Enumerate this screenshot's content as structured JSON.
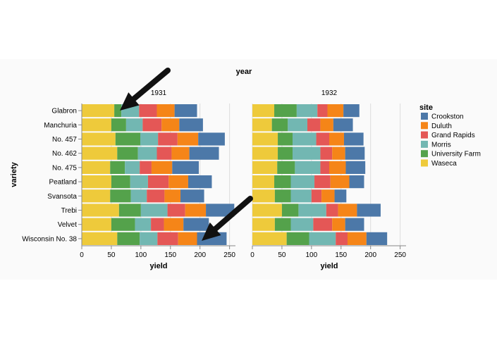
{
  "chart_data": {
    "type": "bar",
    "orientation": "horizontal",
    "stacked": true,
    "column_header": "year",
    "facets": [
      "1931",
      "1932"
    ],
    "xlabel": "yield",
    "ylabel": "variety",
    "xlim": [
      0,
      260
    ],
    "x_ticks": [
      0,
      50,
      100,
      150,
      200,
      250
    ],
    "grid": true,
    "legend": {
      "title": "site",
      "placement": "right"
    },
    "categories": [
      "Glabron",
      "Manchuria",
      "No. 457",
      "No. 462",
      "No. 475",
      "Peatland",
      "Svansota",
      "Trebi",
      "Velvet",
      "Wisconsin No. 38"
    ],
    "series": [
      {
        "name": "Waseca",
        "color": "#eeca3b",
        "values_1931": [
          55,
          50,
          57,
          60,
          48,
          50,
          48,
          63,
          50,
          60
        ],
        "values_1932": [
          37,
          33,
          43,
          43,
          42,
          37,
          38,
          50,
          38,
          58
        ]
      },
      {
        "name": "University Farm",
        "color": "#54a24b",
        "values_1931": [
          12,
          25,
          42,
          35,
          25,
          32,
          35,
          37,
          40,
          38
        ],
        "values_1932": [
          38,
          27,
          25,
          25,
          30,
          28,
          27,
          28,
          27,
          38
        ]
      },
      {
        "name": "Morris",
        "color": "#72b7b2",
        "values_1931": [
          30,
          28,
          30,
          32,
          25,
          30,
          27,
          45,
          27,
          30
        ],
        "values_1932": [
          35,
          33,
          40,
          47,
          43,
          40,
          35,
          47,
          38,
          45
        ]
      },
      {
        "name": "Grand Rapids",
        "color": "#e45756",
        "values_1931": [
          30,
          32,
          33,
          25,
          20,
          35,
          30,
          30,
          22,
          35
        ],
        "values_1932": [
          17,
          22,
          22,
          20,
          15,
          27,
          17,
          20,
          32,
          20
        ]
      },
      {
        "name": "Duluth",
        "color": "#f58518",
        "values_1931": [
          30,
          30,
          35,
          30,
          35,
          33,
          27,
          35,
          33,
          32
        ],
        "values_1932": [
          27,
          22,
          25,
          22,
          28,
          32,
          22,
          32,
          22,
          32
        ]
      },
      {
        "name": "Crookston",
        "color": "#4c78a8",
        "values_1931": [
          38,
          40,
          45,
          50,
          45,
          40,
          40,
          48,
          43,
          50
        ],
        "values_1932": [
          27,
          33,
          33,
          33,
          33,
          25,
          20,
          40,
          32,
          35
        ]
      }
    ]
  }
}
